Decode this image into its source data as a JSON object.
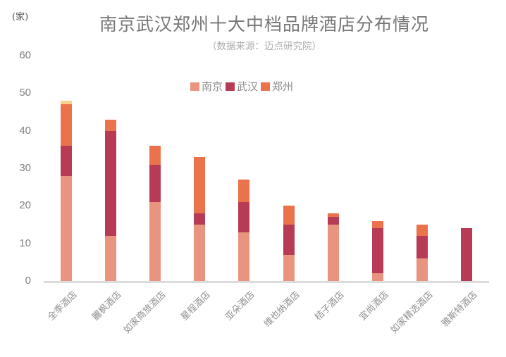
{
  "chart_data": {
    "type": "bar",
    "stacked": true,
    "title": "南京武汉郑州十大中档品牌酒店分布情况",
    "subtitle": "（数据来源：迈点研究院）",
    "unit_label": "(家)",
    "categories": [
      "全季酒店",
      "麗枫酒店",
      "如家商旅酒店",
      "星程酒店",
      "亚朵酒店",
      "维也纳酒店",
      "桔子酒店",
      "宜尚酒店",
      "如家精选酒店",
      "雅斯特酒店"
    ],
    "series": [
      {
        "name": "南京",
        "color": "#E9947F",
        "in_legend": true,
        "values": [
          28,
          12,
          21,
          15,
          13,
          7,
          15,
          2,
          6,
          0
        ]
      },
      {
        "name": "武汉",
        "color": "#B83B55",
        "in_legend": true,
        "values": [
          8,
          28,
          10,
          3,
          8,
          8,
          2,
          12,
          6,
          14
        ]
      },
      {
        "name": "郑州",
        "color": "#EB734C",
        "in_legend": true,
        "values": [
          11,
          3,
          5,
          15,
          6,
          5,
          1,
          2,
          3,
          0
        ]
      },
      {
        "name": "unlabeled-top-segment",
        "color": "#F8D18F",
        "in_legend": false,
        "values": [
          1,
          0,
          0,
          0,
          0,
          0,
          0,
          0,
          0,
          0
        ]
      }
    ],
    "totals": [
      48,
      43,
      36,
      33,
      27,
      20,
      18,
      16,
      15,
      14
    ],
    "xlabel": "",
    "ylabel": "",
    "ylim": [
      0,
      60
    ],
    "y_ticks": [
      0,
      10,
      20,
      30,
      40,
      50,
      60
    ],
    "grid": false,
    "legend_position": "top-center",
    "axis_line_color": "#DCDCDC"
  }
}
